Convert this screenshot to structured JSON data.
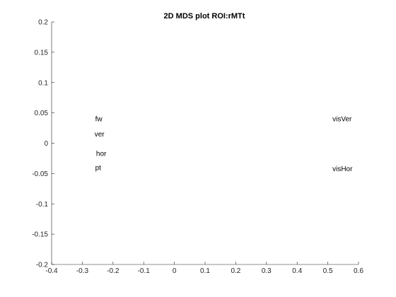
{
  "chart_data": {
    "type": "scatter",
    "title": "2D MDS plot ROI:rMTt",
    "xlabel": "",
    "ylabel": "",
    "xlim": [
      -0.4,
      0.6
    ],
    "ylim": [
      -0.2,
      0.2
    ],
    "grid": false,
    "legend": "none",
    "marker": "text-label",
    "x_ticks": [
      -0.4,
      -0.3,
      -0.2,
      -0.1,
      0,
      0.1,
      0.2,
      0.3,
      0.4,
      0.5,
      0.6
    ],
    "x_tick_labels": [
      "-0.4",
      "-0.3",
      "-0.2",
      "-0.1",
      "0",
      "0.1",
      "0.2",
      "0.3",
      "0.4",
      "0.5",
      "0.6"
    ],
    "y_ticks": [
      -0.2,
      -0.15,
      -0.1,
      -0.05,
      0,
      0.05,
      0.1,
      0.15,
      0.2
    ],
    "y_tick_labels": [
      "-0.2",
      "-0.15",
      "-0.1",
      "-0.05",
      "0",
      "0.05",
      "0.1",
      "0.15",
      "0.2"
    ],
    "points": [
      {
        "label": "fw",
        "x": -0.258,
        "y": 0.04
      },
      {
        "label": "ver",
        "x": -0.26,
        "y": 0.015
      },
      {
        "label": "hor",
        "x": -0.255,
        "y": -0.017
      },
      {
        "label": "pt",
        "x": -0.258,
        "y": -0.04
      },
      {
        "label": "visVer",
        "x": 0.515,
        "y": 0.04
      },
      {
        "label": "visHor",
        "x": 0.515,
        "y": -0.042
      }
    ],
    "colors": {
      "axis": "#262626",
      "text": "#000000",
      "background": "#ffffff"
    }
  }
}
